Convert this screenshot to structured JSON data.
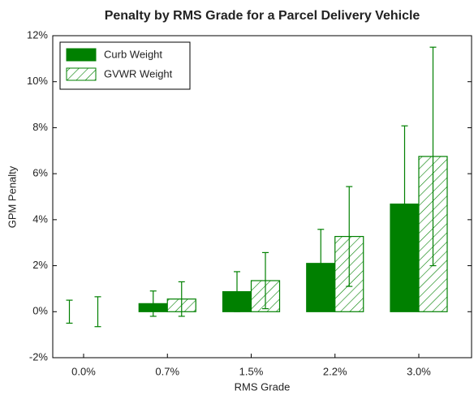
{
  "chart_data": {
    "type": "bar",
    "title": "Penalty by RMS Grade for a Parcel Delivery Vehicle",
    "xlabel": "RMS Grade",
    "ylabel": "GPM Penalty",
    "categories": [
      "0.0%",
      "0.7%",
      "1.5%",
      "2.2%",
      "3.0%"
    ],
    "series": [
      {
        "name": "Curb Weight",
        "color": "#008000",
        "hatch": false,
        "values": [
          0,
          0.35,
          0.87,
          2.1,
          4.68
        ],
        "errors": [
          0.5,
          0.55,
          0.87,
          1.48,
          3.4
        ]
      },
      {
        "name": "GVWR Weight",
        "color": "#008000",
        "hatch": true,
        "values": [
          0,
          0.55,
          1.35,
          3.27,
          6.75
        ],
        "errors": [
          0.65,
          0.75,
          1.22,
          2.17,
          4.75
        ]
      }
    ],
    "ylim": [
      -2,
      12
    ],
    "yticks": [
      {
        "value": -2,
        "label": "-2%"
      },
      {
        "value": 0,
        "label": "0%"
      },
      {
        "value": 2,
        "label": "2%"
      },
      {
        "value": 4,
        "label": "4%"
      },
      {
        "value": 6,
        "label": "6%"
      },
      {
        "value": 8,
        "label": "8%"
      },
      {
        "value": 10,
        "label": "10%"
      },
      {
        "value": 12,
        "label": "12%"
      }
    ],
    "legend": "upper left"
  }
}
